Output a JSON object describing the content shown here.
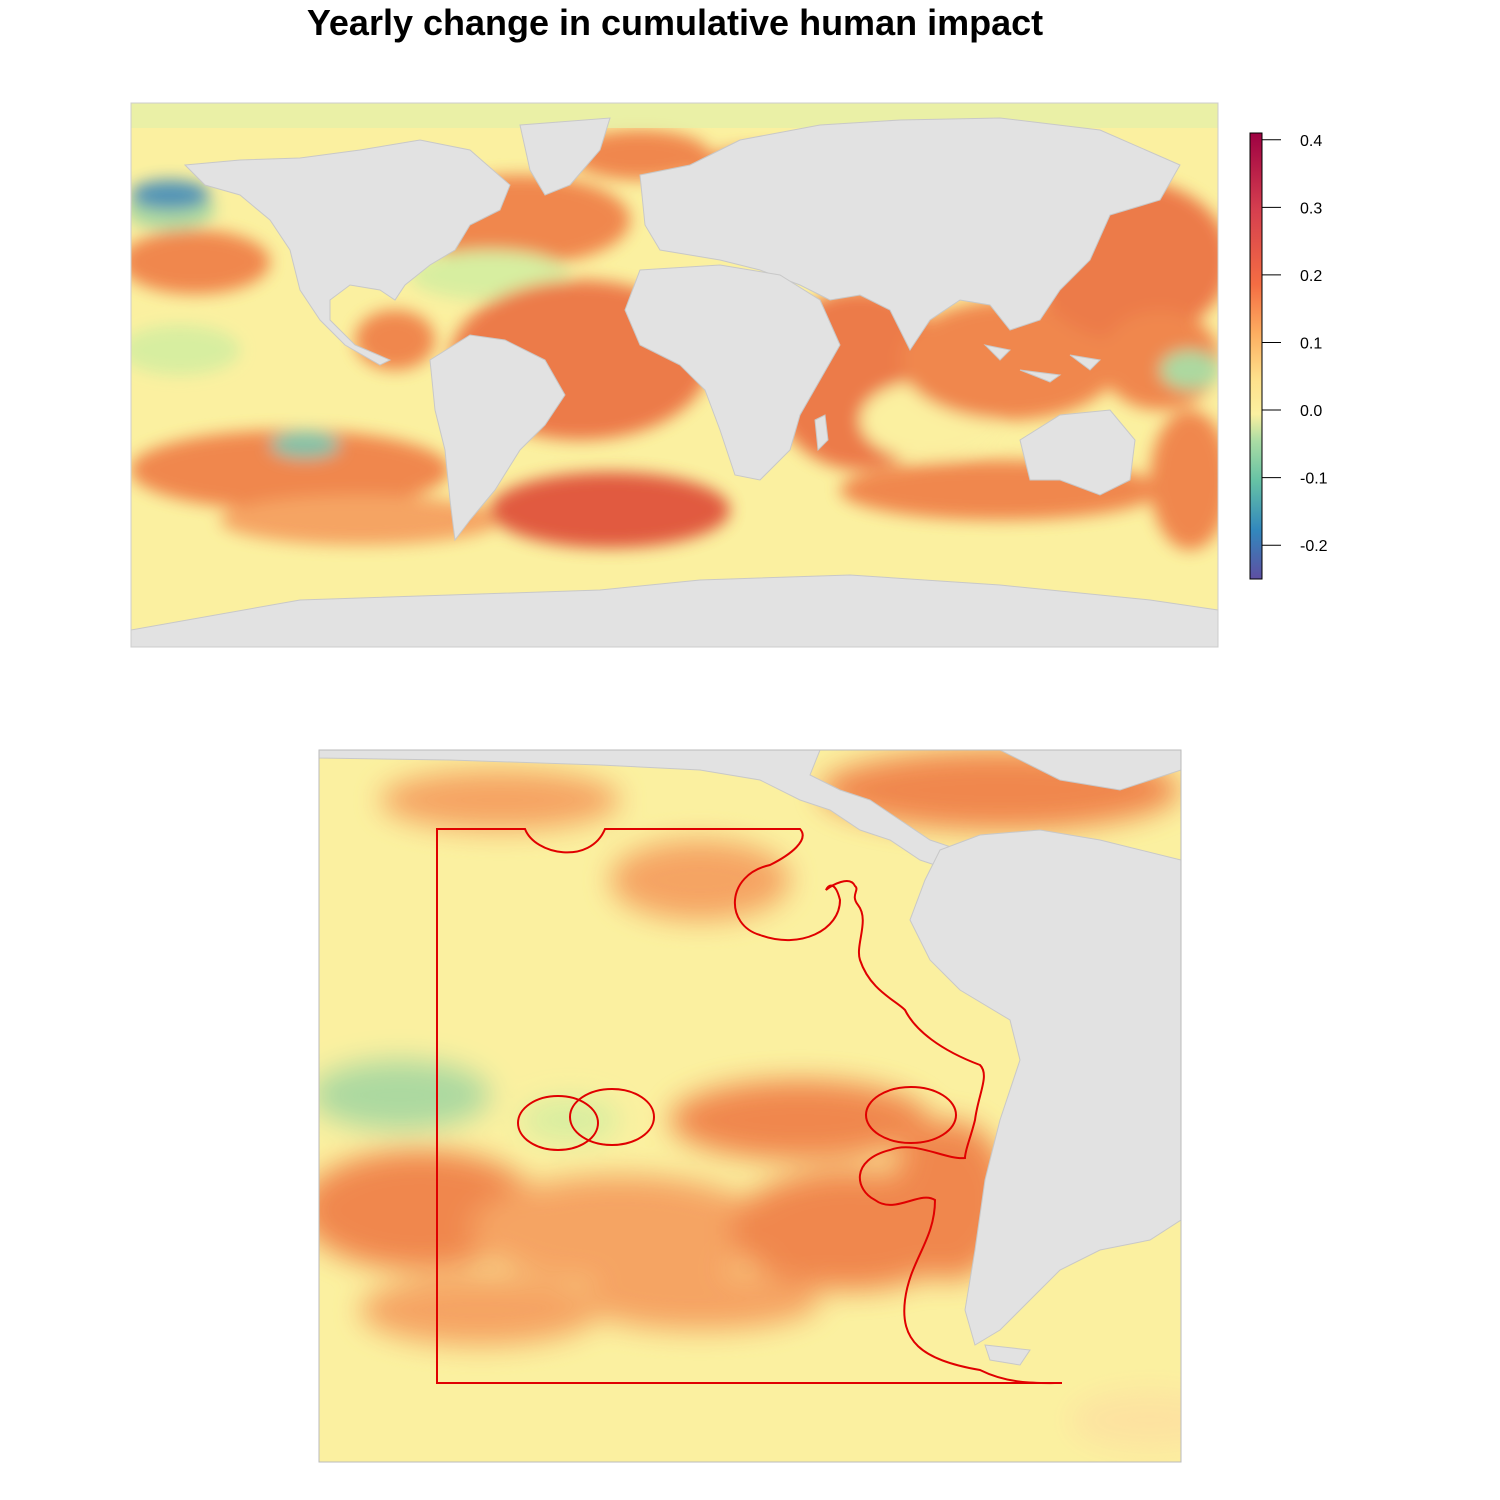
{
  "title": "Yearly change in cumulative human impact",
  "legend": {
    "ticks": [
      "0.4",
      "0.3",
      "0.2",
      "0.1",
      "0.0",
      "-0.1",
      "-0.2"
    ],
    "tick_values": [
      0.4,
      0.3,
      0.2,
      0.1,
      0.0,
      -0.1,
      -0.2
    ],
    "range": [
      -0.25,
      0.41
    ],
    "palette": [
      "#5e4fa2",
      "#3288bd",
      "#66c2a5",
      "#abdda4",
      "#e6f598",
      "#fee08b",
      "#fdae61",
      "#f46d43",
      "#d53e4f",
      "#9e0142"
    ]
  },
  "colors": {
    "land": "#e2e2e2",
    "ocean_neutral": "#fbf0a0",
    "increase": "#f0824a",
    "strong_increase": "#e0533a",
    "decrease": "#a8d8a0",
    "strong_decrease": "#4a8fb8",
    "boundary": "#e00000"
  },
  "chart_data": [
    {
      "type": "heatmap",
      "title": "Yearly change in cumulative human impact",
      "region": "world",
      "value_range": [
        -0.25,
        0.41
      ],
      "legend_position": "right"
    },
    {
      "type": "heatmap",
      "region": "southeast-pacific",
      "value_range": [
        -0.25,
        0.41
      ],
      "overlay": "study-area-boundary"
    }
  ]
}
